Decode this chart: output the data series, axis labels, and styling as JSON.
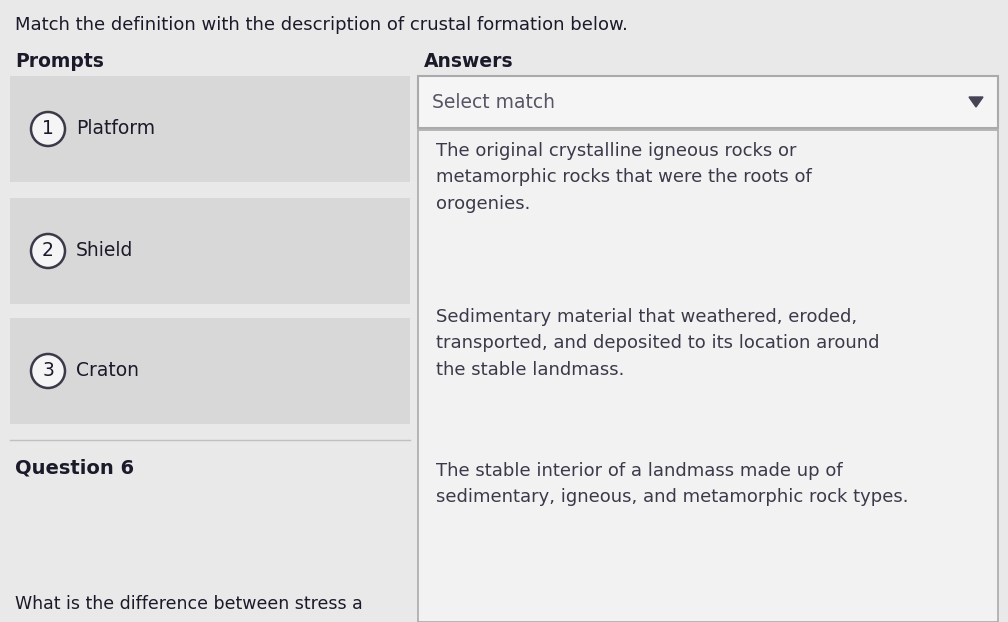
{
  "title": "Match the definition with the description of crustal formation below.",
  "prompts_label": "Prompts",
  "answers_label": "Answers",
  "prompts": [
    {
      "number": "1",
      "text": "Platform"
    },
    {
      "number": "2",
      "text": "Shield"
    },
    {
      "number": "3",
      "text": "Craton"
    }
  ],
  "select_match_text": "Select match",
  "answers": [
    "The original crystalline igneous rocks or\nmetamorphic rocks that were the roots of\norogenies.",
    "Sedimentary material that weathered, eroded,\ntransported, and deposited to its location around\nthe stable landmass.",
    "The stable interior of a landmass made up of\nsedimentary, igneous, and metamorphic rock types."
  ],
  "question6_label": "Question 6",
  "bottom_text": "What is the difference between stress a",
  "bg_color": "#e9e9e9",
  "prompt_box_color": "#d8d8d8",
  "answer_box_color": "#f2f2f2",
  "select_box_bg": "#f5f5f5",
  "dropdown_border": "#aaaaaa",
  "text_color": "#3a3a4a",
  "label_color": "#1a1a2a",
  "circle_bg": "#f5f5f5",
  "circle_edge": "#3a3a4a",
  "divider_color": "#c0c0c0",
  "title_fontsize": 13.0,
  "header_fontsize": 13.5,
  "prompt_fontsize": 13.5,
  "answer_fontsize": 13.0
}
